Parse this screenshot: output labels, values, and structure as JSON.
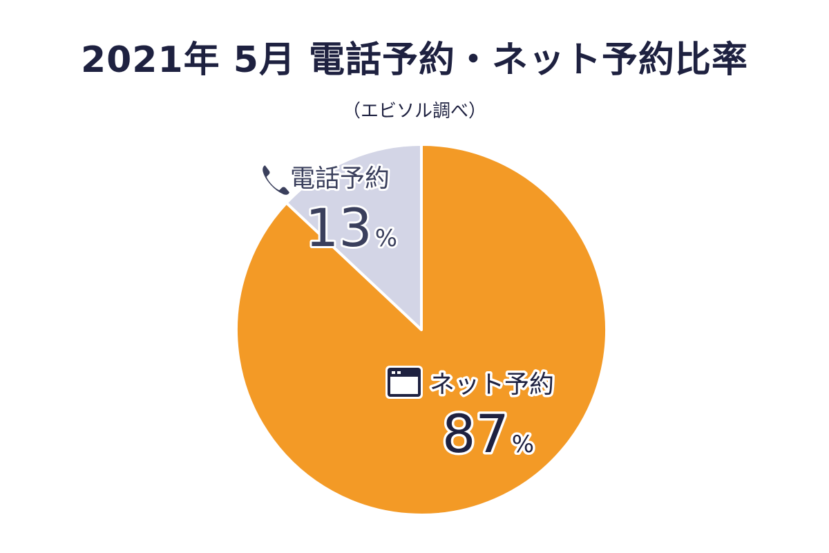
{
  "title": "2021年 5月  電話予約・ネット予約比率",
  "subtitle": "（エビソル調べ）",
  "colors": {
    "net": "#f39a26",
    "phone": "#d3d5e6",
    "text_dark": "#1e2140",
    "text_phone": "#3a3f5c"
  },
  "chart_data": {
    "type": "pie",
    "title": "2021年 5月  電話予約・ネット予約比率",
    "subtitle": "（エビソル調べ）",
    "categories": [
      "ネット予約",
      "電話予約"
    ],
    "values": [
      87,
      13
    ],
    "unit": "%",
    "slices": [
      {
        "label": "ネット予約",
        "value": 87,
        "value_text": "87",
        "unit": "%",
        "color": "#f39a26",
        "icon": "browser-window-icon"
      },
      {
        "label": "電話予約",
        "value": 13,
        "value_text": "13",
        "unit": "%",
        "color": "#d3d5e6",
        "icon": "phone-icon"
      }
    ]
  }
}
